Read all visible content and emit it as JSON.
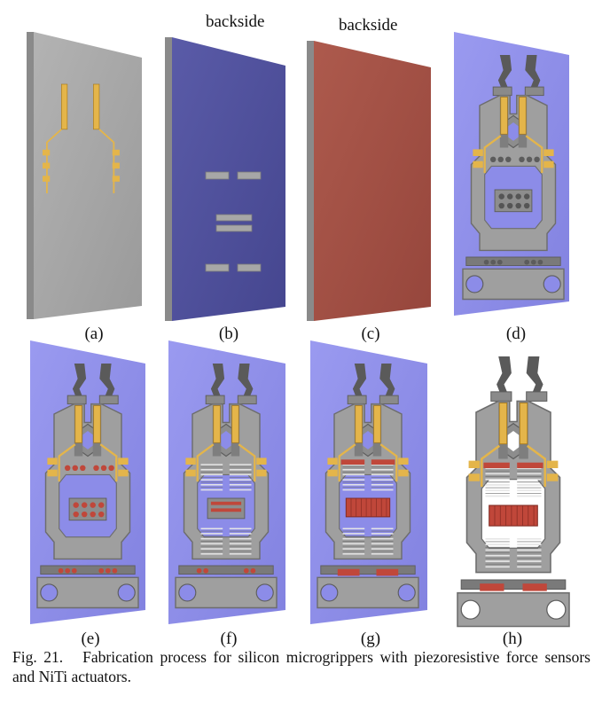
{
  "panels": [
    {
      "label": "(a)"
    },
    {
      "label": "(b)",
      "side_label": "backside"
    },
    {
      "label": "(c)",
      "side_label": "backside"
    },
    {
      "label": "(d)"
    },
    {
      "label": "(e)"
    },
    {
      "label": "(f)"
    },
    {
      "label": "(g)"
    },
    {
      "label": "(h)"
    }
  ],
  "caption": {
    "number": "Fig. 21.",
    "text": "Fabrication process for silicon microgrippers with piezoresistive force sensors and NiTi actuators."
  },
  "colors": {
    "silicon": "#a6a6a6",
    "silicon_edge": "#7c7c7c",
    "oxide_blue": "#8c8ce8",
    "backside_blue": "#4e4f9c",
    "backside_red": "#a24f45",
    "gold": "#e4b54a",
    "niti_red": "#c0473a"
  }
}
